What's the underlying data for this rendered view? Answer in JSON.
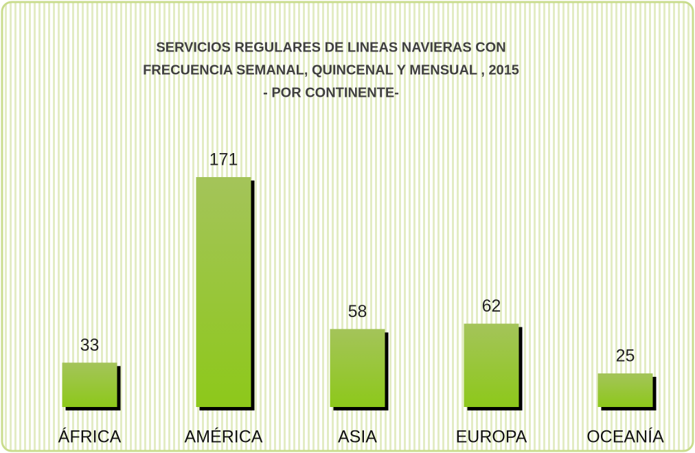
{
  "chart_data": {
    "type": "bar",
    "title": [
      "SERVICIOS REGULARES DE LINEAS NAVIERAS CON",
      "FRECUENCIA SEMANAL, QUINCENAL Y MENSUAL , 2015",
      "- POR CONTINENTE-"
    ],
    "categories": [
      "ÁFRICA",
      "AMÉRICA",
      "ASIA",
      "EUROPA",
      "OCEANÍA"
    ],
    "values": [
      33,
      171,
      58,
      62,
      25
    ],
    "color": "#8dc81a"
  }
}
